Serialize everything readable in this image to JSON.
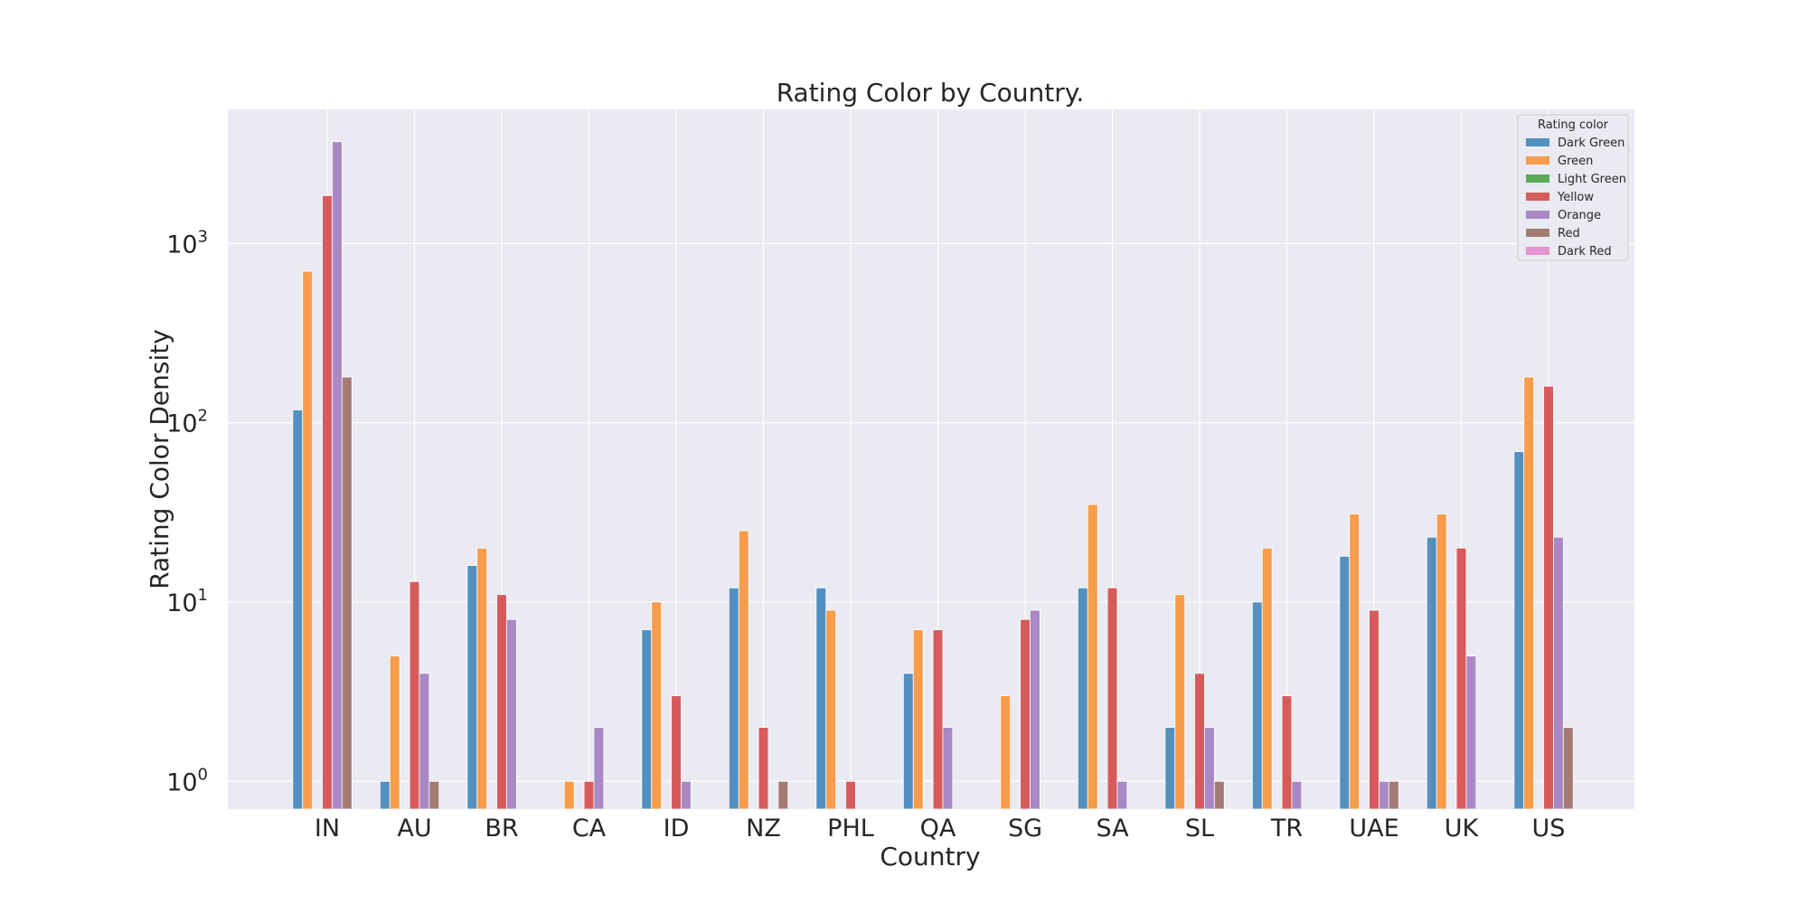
{
  "chart_data": {
    "type": "bar",
    "title": "Rating Color by Country.",
    "xlabel": "Country",
    "ylabel": "Rating Color Density",
    "yscale": "log",
    "ylim": [
      0.7,
      5600
    ],
    "yticks": [
      {
        "value": 1,
        "base": "10",
        "exp": "0"
      },
      {
        "value": 10,
        "base": "10",
        "exp": "1"
      },
      {
        "value": 100,
        "base": "10",
        "exp": "2"
      },
      {
        "value": 1000,
        "base": "10",
        "exp": "3"
      }
    ],
    "grid": true,
    "legend": {
      "title": "Rating color",
      "placement": "top-right"
    },
    "categories": [
      "IN",
      "AU",
      "BR",
      "CA",
      "ID",
      "NZ",
      "PHL",
      "QA",
      "SG",
      "SA",
      "SL",
      "TR",
      "UAE",
      "UK",
      "US"
    ],
    "series": [
      {
        "name": "Dark Green",
        "color": "#5390c0",
        "values": [
          118,
          1,
          16,
          null,
          7,
          12,
          12,
          4,
          null,
          12,
          2,
          10,
          18,
          23,
          69
        ]
      },
      {
        "name": "Green",
        "color": "#f79c4a",
        "values": [
          700,
          5,
          20,
          1,
          10,
          25,
          9,
          7,
          3,
          35,
          11,
          20,
          31,
          31,
          180
        ]
      },
      {
        "name": "Light Green",
        "color": "#5aac5a",
        "values": [
          null,
          null,
          null,
          null,
          null,
          null,
          null,
          null,
          null,
          null,
          null,
          null,
          null,
          null,
          null
        ]
      },
      {
        "name": "Yellow",
        "color": "#d75b5c",
        "values": [
          1850,
          13,
          11,
          1,
          3,
          2,
          1,
          7,
          8,
          12,
          4,
          3,
          9,
          20,
          160
        ]
      },
      {
        "name": "Orange",
        "color": "#a889c5",
        "values": [
          3700,
          4,
          8,
          2,
          1,
          null,
          null,
          2,
          9,
          1,
          2,
          1,
          1,
          5,
          23
        ]
      },
      {
        "name": "Red",
        "color": "#a47b73",
        "values": [
          180,
          1,
          null,
          null,
          null,
          1,
          null,
          null,
          null,
          null,
          1,
          null,
          1,
          null,
          2
        ]
      },
      {
        "name": "Dark Red",
        "color": "#e295ce",
        "values": [
          null,
          null,
          null,
          null,
          null,
          null,
          null,
          null,
          null,
          null,
          null,
          null,
          null,
          null,
          null
        ]
      }
    ]
  }
}
